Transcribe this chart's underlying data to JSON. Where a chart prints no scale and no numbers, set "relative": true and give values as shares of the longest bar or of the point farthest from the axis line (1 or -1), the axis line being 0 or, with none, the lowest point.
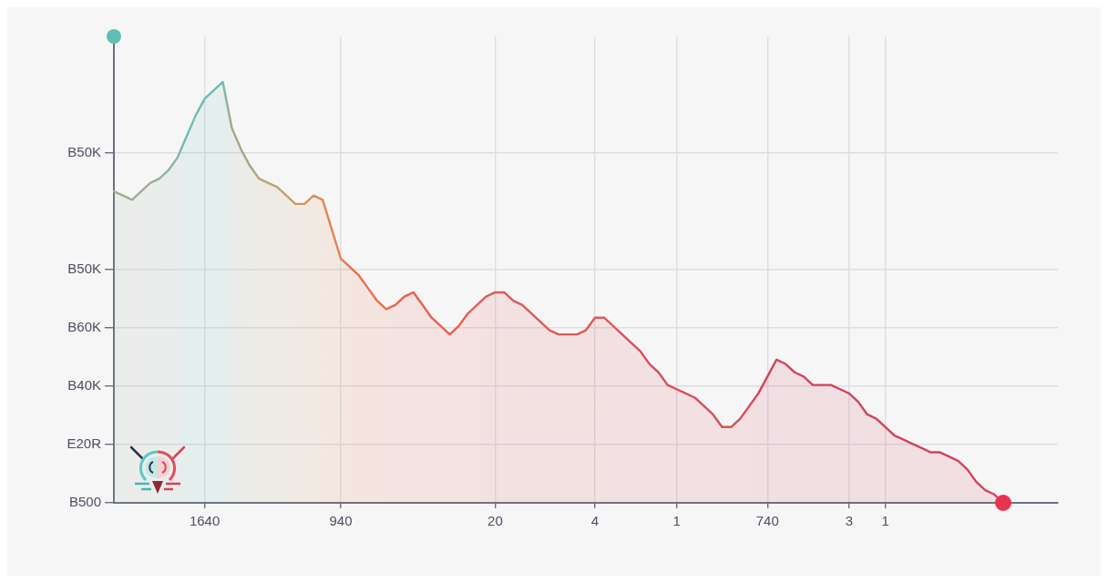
{
  "chart_data": {
    "type": "area",
    "relative": true,
    "grid": true,
    "categories": [
      null,
      null,
      null,
      null,
      null,
      null,
      null,
      null,
      null,
      null,
      "1640",
      null,
      null,
      null,
      null,
      null,
      null,
      null,
      null,
      null,
      null,
      null,
      null,
      null,
      null,
      "940",
      null,
      null,
      null,
      null,
      null,
      null,
      null,
      null,
      null,
      null,
      null,
      null,
      null,
      null,
      null,
      null,
      "20",
      null,
      null,
      null,
      null,
      null,
      null,
      null,
      null,
      null,
      null,
      "4",
      null,
      null,
      null,
      null,
      null,
      null,
      null,
      null,
      "1",
      null,
      null,
      null,
      null,
      null,
      null,
      null,
      null,
      null,
      "740",
      null,
      null,
      null,
      null,
      null,
      null,
      null,
      null,
      "3",
      null,
      null,
      null,
      "1",
      null,
      null,
      null,
      null,
      null,
      null,
      null,
      null,
      null,
      null,
      null,
      null,
      null,
      null,
      null,
      null,
      null,
      null,
      null
    ],
    "y_categories": [
      null,
      null,
      "B50K",
      null,
      "B50K",
      "B60K",
      "B40K",
      "E20R",
      "B500"
    ],
    "series": [
      {
        "values": [
          0.74,
          0.73,
          0.72,
          0.74,
          0.76,
          0.77,
          0.79,
          0.82,
          0.87,
          0.92,
          0.96,
          0.98,
          1,
          0.89,
          0.84,
          0.8,
          0.77,
          0.76,
          0.75,
          0.73,
          0.71,
          0.71,
          0.73,
          0.72,
          0.65,
          0.58,
          0.56,
          0.54,
          0.51,
          0.48,
          0.46,
          0.47,
          0.49,
          0.5,
          0.47,
          0.44,
          0.42,
          0.4,
          0.42,
          0.45,
          0.47,
          0.49,
          0.5,
          0.5,
          0.48,
          0.47,
          0.45,
          0.43,
          0.41,
          0.4,
          0.4,
          0.4,
          0.41,
          0.44,
          0.44,
          0.42,
          0.4,
          0.38,
          0.36,
          0.33,
          0.31,
          0.28,
          0.27,
          0.26,
          0.25,
          0.23,
          0.21,
          0.18,
          0.18,
          0.2,
          0.23,
          0.26,
          0.3,
          0.34,
          0.33,
          0.31,
          0.3,
          0.28,
          0.28,
          0.28,
          0.27,
          0.26,
          0.24,
          0.21,
          0.2,
          0.18,
          0.16,
          0.15,
          0.14,
          0.13,
          0.12,
          0.12,
          0.11,
          0.1,
          0.08,
          0.05,
          0.03,
          0.02,
          0,
          null,
          null,
          null,
          null,
          null,
          null
        ],
        "colors": [
          "#a0ad98",
          "#a0ad98",
          "#a0ad98",
          "#a0ad98",
          "#a0ad98",
          "#8fb3a3",
          "#8fb3a3",
          "#8fb3a3",
          "#6dbcb2",
          "#6dbcb2",
          "#6dbcb2",
          "#6dbcb2",
          "#6dbcb2",
          "#a0aa88",
          "#a0aa88",
          "#a0aa88",
          "#bba474",
          "#bba474",
          "#bba474",
          "#bba474",
          "#cf975f",
          "#cf975f",
          "#cf975f",
          "#e3844f",
          "#e3844f",
          "#e3844f",
          "#e9704c",
          "#e9704c",
          "#e9704c",
          "#e9704c",
          "#e9704c",
          "#e8604f",
          "#e8604f",
          "#e8604f",
          "#e8604f",
          "#e8604f",
          "#e8604f",
          "#e8604f",
          "#e8604f",
          "#e8604f",
          "#e8604f",
          "#e15858",
          "#e15858",
          "#e15858",
          "#e15858",
          "#e15858",
          "#e15858",
          "#e15858",
          "#e15858",
          "#e15858",
          "#e15858",
          "#e15858",
          "#e15858",
          "#e15858",
          "#e15858",
          "#e15858",
          "#d94e59",
          "#d94e59",
          "#d94e59",
          "#d94e59",
          "#d94e59",
          "#d94e59",
          "#d94e59",
          "#d94e59",
          "#d94e59",
          "#d94e59",
          "#d94e59",
          "#d94e59",
          "#d94e59",
          "#d94e59",
          "#d94e59",
          "#d2435a",
          "#d2435a",
          "#d2435a",
          "#d2435a",
          "#d2435a",
          "#d2435a",
          "#d2435a",
          "#d2435a",
          "#d2435a",
          "#d2435a",
          "#d2435a",
          "#d2435a",
          "#d2435a",
          "#d2435a",
          "#d2435a",
          "#d2435a",
          "#d2435a",
          "#d2435a",
          "#d2435a",
          "#d2435a",
          "#d2435a",
          "#d2435a",
          "#d2435a",
          "#d2435a",
          "#d2435a",
          "#d2435a",
          "#d2435a",
          "#d2435a",
          null,
          null,
          null,
          null,
          null,
          null
        ]
      }
    ]
  }
}
